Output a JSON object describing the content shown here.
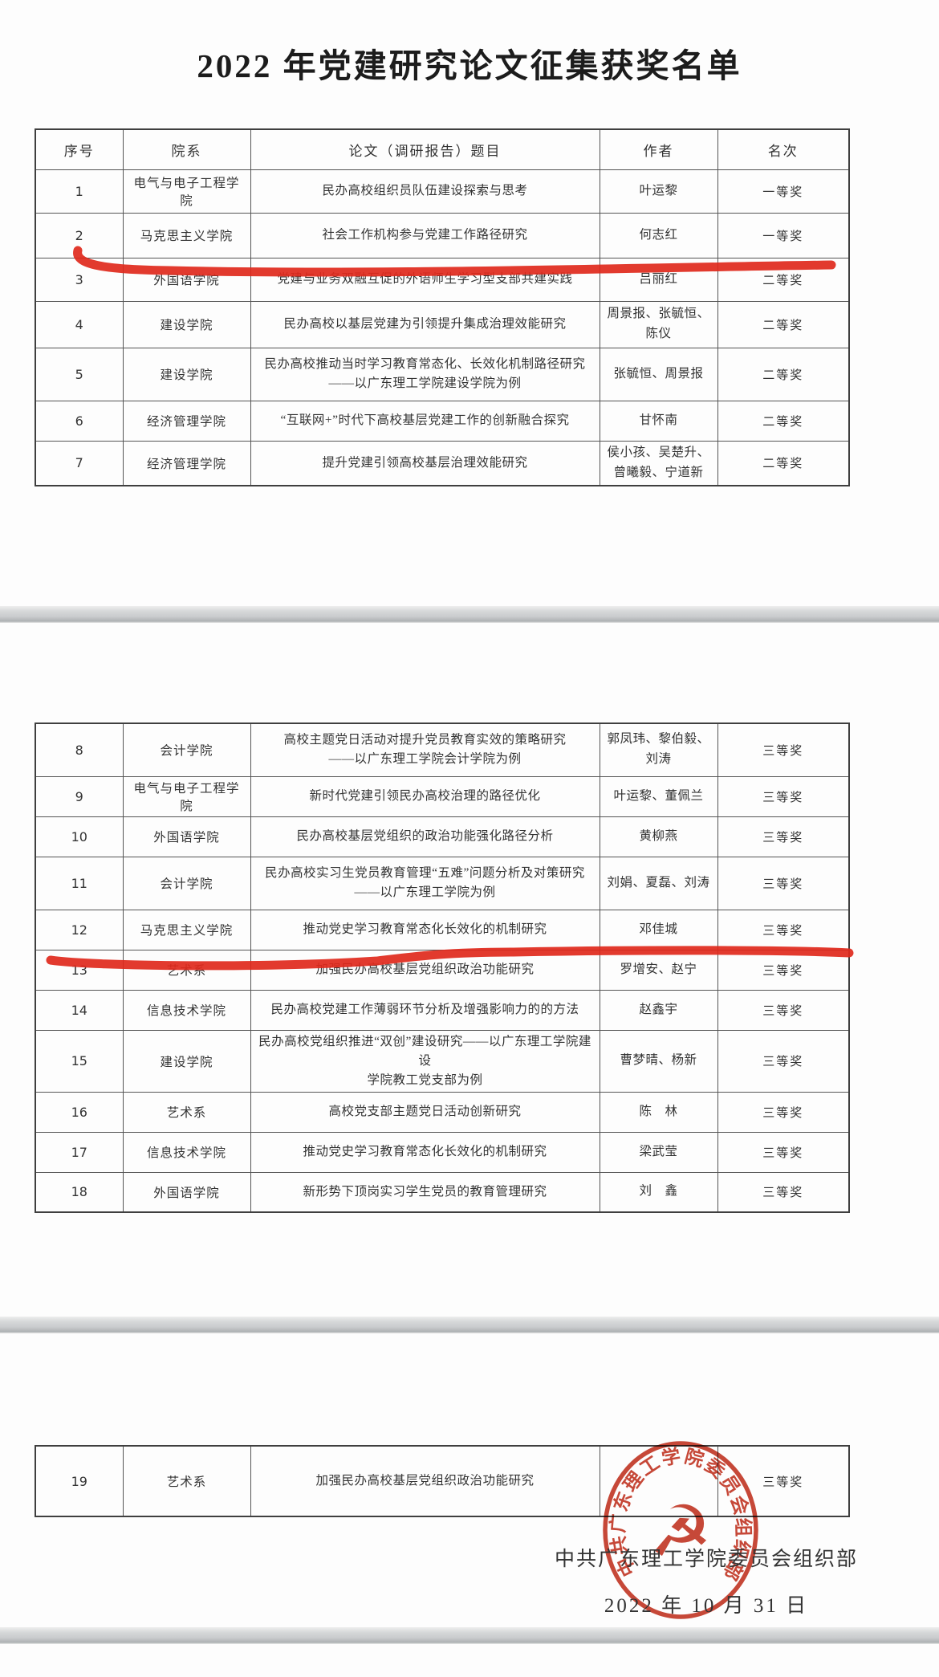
{
  "document": {
    "title": "2022 年党建研究论文征集获奖名单",
    "columns": [
      "序号",
      "院系",
      "论文（调研报告）题目",
      "作者",
      "名次"
    ],
    "footer": {
      "issuer": "中共广东理工学院委员会组织部",
      "date": "2022 年 10 月 31 日"
    },
    "stamp": {
      "ring_text": "中共广东理工学院委员会组织部",
      "emblem": "hammer-and-sickle",
      "emblem_glyph": "☭",
      "color": "#c43a28"
    },
    "annotations": {
      "type": "hand-drawn red underlines",
      "underlined_row_numbers": [
        2,
        12
      ],
      "color": "#e02b1d"
    }
  },
  "tables": [
    {
      "rows": [
        {
          "no": "1",
          "dept": "电气与电子工程学院",
          "title": "民办高校组织员队伍建设探索与思考",
          "authors": "叶运黎",
          "rank": "一等奖"
        },
        {
          "no": "2",
          "dept": "马克思主义学院",
          "title": "社会工作机构参与党建工作路径研究",
          "authors": "何志红",
          "rank": "一等奖"
        },
        {
          "no": "3",
          "dept": "外国语学院",
          "title": "党建与业务双融互促的外语师生学习型支部共建实践",
          "authors": "吕丽红",
          "rank": "二等奖"
        },
        {
          "no": "4",
          "dept": "建设学院",
          "title": "民办高校以基层党建为引领提升集成治理效能研究",
          "authors": "周景报、张毓恒、陈仪",
          "rank": "二等奖"
        },
        {
          "no": "5",
          "dept": "建设学院",
          "title": [
            "民办高校推动当时学习教育常态化、长效化机制路径研究",
            "——以广东理工学院建设学院为例"
          ],
          "authors": "张毓恒、周景报",
          "rank": "二等奖"
        },
        {
          "no": "6",
          "dept": "经济管理学院",
          "title": "“互联网+”时代下高校基层党建工作的创新融合探究",
          "authors": "甘怀南",
          "rank": "二等奖"
        },
        {
          "no": "7",
          "dept": "经济管理学院",
          "title": "提升党建引领高校基层治理效能研究",
          "authors": "侯小孩、吴楚升、曾曦毅、宁道新",
          "rank": "二等奖"
        }
      ]
    },
    {
      "rows": [
        {
          "no": "8",
          "dept": "会计学院",
          "title": [
            "高校主题党日活动对提升党员教育实效的策略研究",
            "——以广东理工学院会计学院为例"
          ],
          "authors": "郭凤玮、黎伯毅、刘涛",
          "rank": "三等奖"
        },
        {
          "no": "9",
          "dept": "电气与电子工程学院",
          "title": "新时代党建引领民办高校治理的路径优化",
          "authors": "叶运黎、董佩兰",
          "rank": "三等奖"
        },
        {
          "no": "10",
          "dept": "外国语学院",
          "title": "民办高校基层党组织的政治功能强化路径分析",
          "authors": "黄柳燕",
          "rank": "三等奖"
        },
        {
          "no": "11",
          "dept": "会计学院",
          "title": [
            "民办高校实习生党员教育管理“五难”问题分析及对策研究",
            "——以广东理工学院为例"
          ],
          "authors": "刘娟、夏磊、刘涛",
          "rank": "三等奖"
        },
        {
          "no": "12",
          "dept": "马克思主义学院",
          "title": "推动党史学习教育常态化长效化的机制研究",
          "authors": "邓佳城",
          "rank": "三等奖"
        },
        {
          "no": "13",
          "dept": "艺术系",
          "title": "加强民办高校基层党组织政治功能研究",
          "authors": "罗增安、赵宁",
          "rank": "三等奖"
        },
        {
          "no": "14",
          "dept": "信息技术学院",
          "title": "民办高校党建工作薄弱环节分析及增强影响力的的方法",
          "authors": "赵鑫宇",
          "rank": "三等奖"
        },
        {
          "no": "15",
          "dept": "建设学院",
          "title": [
            "民办高校党组织推进“双创”建设研究——以广东理工学院建设",
            "学院教工党支部为例"
          ],
          "authors": "曹梦晴、杨新",
          "rank": "三等奖"
        },
        {
          "no": "16",
          "dept": "艺术系",
          "title": "高校党支部主题党日活动创新研究",
          "authors": "陈　林",
          "rank": "三等奖"
        },
        {
          "no": "17",
          "dept": "信息技术学院",
          "title": "推动党史学习教育常态化长效化的机制研究",
          "authors": "梁武莹",
          "rank": "三等奖"
        },
        {
          "no": "18",
          "dept": "外国语学院",
          "title": "新形势下顶岗实习学生党员的教育管理研究",
          "authors": "刘　鑫",
          "rank": "三等奖"
        }
      ]
    },
    {
      "rows": [
        {
          "no": "19",
          "dept": "艺术系",
          "title": "加强民办高校基层党组织政治功能研究",
          "authors": "",
          "rank": "三等奖"
        }
      ]
    }
  ]
}
